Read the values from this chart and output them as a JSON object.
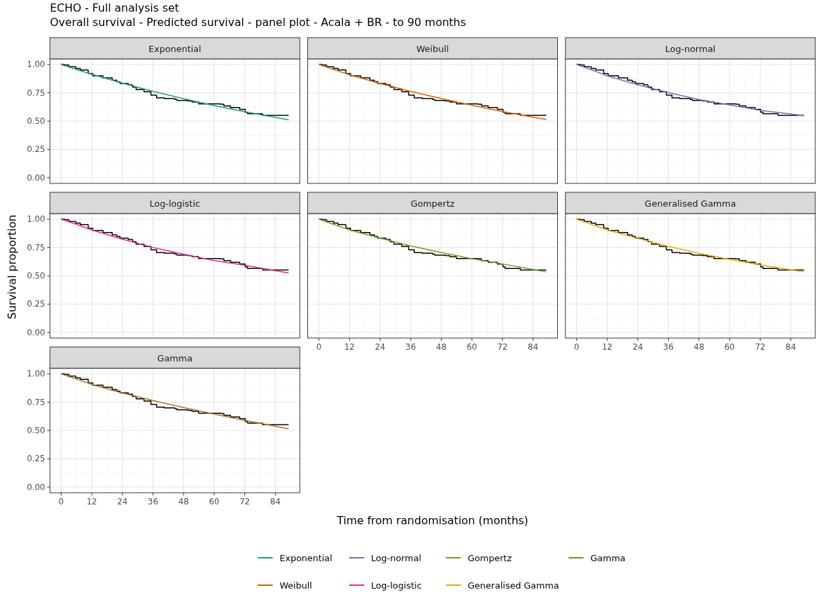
{
  "chart_data": [
    {
      "type": "line",
      "title": "Exponential",
      "annotations": [
        "ECHO - Full analysis set",
        "Overall survival - Predicted survival - panel plot - Acala + BR - to 90 months"
      ],
      "xlabel": "Time from randomisation (months)",
      "ylabel": "Survival proportion",
      "xlim": [
        -4.4,
        93.6
      ],
      "ylim": [
        -0.05,
        1.05
      ],
      "xticks": [
        0,
        12,
        24,
        36,
        48,
        60,
        72,
        84
      ],
      "yticks": [
        {
          "value": 0,
          "label": "0.00"
        },
        {
          "value": 0.25,
          "label": "0.25"
        },
        {
          "value": 0.5,
          "label": "0.50"
        },
        {
          "value": 0.75,
          "label": "0.75"
        },
        {
          "value": 1,
          "label": "1.00"
        }
      ],
      "grid": true,
      "legend": "bottom",
      "tick_labels": "y",
      "series": [
        {
          "type": "step",
          "color": "#000000",
          "x": [
            0,
            1.3,
            3,
            5.7,
            7.5,
            10.6,
            12.4,
            16.4,
            20,
            21.8,
            23.1,
            26.3,
            28,
            29.4,
            32.5,
            35.2,
            37.4,
            40.5,
            44.6,
            45.4,
            49.5,
            51.3,
            53.9,
            62.4,
            63.8,
            66.4,
            70,
            72.2,
            73.1,
            79,
            89.2
          ],
          "values": [
            1,
            0.996,
            0.98,
            0.966,
            0.952,
            0.92,
            0.9,
            0.883,
            0.861,
            0.847,
            0.833,
            0.821,
            0.8,
            0.78,
            0.76,
            0.73,
            0.706,
            0.7,
            0.692,
            0.683,
            0.679,
            0.669,
            0.653,
            0.649,
            0.635,
            0.619,
            0.605,
            0.579,
            0.565,
            0.552,
            0.552
          ]
        },
        {
          "name": "Exponential",
          "color": "#1b9e77",
          "x": [
            0,
            6,
            12,
            24,
            36,
            48,
            60,
            72,
            84,
            89.2
          ],
          "values": [
            1,
            0.956,
            0.914,
            0.835,
            0.763,
            0.698,
            0.638,
            0.583,
            0.533,
            0.512
          ]
        }
      ]
    },
    {
      "type": "line",
      "title": "Weibull",
      "xlim": [
        -4.4,
        93.6
      ],
      "ylim": [
        -0.05,
        1.05
      ],
      "xticks": [
        0,
        12,
        24,
        36,
        48,
        60,
        72,
        84
      ],
      "yticks": [
        0,
        0.25,
        0.5,
        0.75,
        1
      ],
      "grid": true,
      "legend": "bottom",
      "tick_labels": false,
      "series": [
        {
          "type": "step",
          "color": "#000000",
          "x": [
            0,
            1.3,
            3,
            5.7,
            7.5,
            10.6,
            12.4,
            16.4,
            20,
            21.8,
            23.1,
            26.3,
            28,
            29.4,
            32.5,
            35.2,
            37.4,
            40.5,
            44.6,
            45.4,
            49.5,
            51.3,
            53.9,
            62.4,
            63.8,
            66.4,
            70,
            72.2,
            73.1,
            79,
            89.2
          ],
          "values": [
            1,
            0.996,
            0.98,
            0.966,
            0.952,
            0.92,
            0.9,
            0.883,
            0.861,
            0.847,
            0.833,
            0.821,
            0.8,
            0.78,
            0.76,
            0.73,
            0.706,
            0.7,
            0.692,
            0.683,
            0.679,
            0.669,
            0.653,
            0.649,
            0.635,
            0.619,
            0.605,
            0.579,
            0.565,
            0.552,
            0.552
          ]
        },
        {
          "name": "Weibull",
          "color": "#d95f02",
          "x": [
            0,
            6,
            12,
            24,
            36,
            48,
            60,
            72,
            84,
            89.2
          ],
          "values": [
            1,
            0.954,
            0.91,
            0.833,
            0.763,
            0.7,
            0.641,
            0.585,
            0.535,
            0.515
          ]
        }
      ]
    },
    {
      "type": "line",
      "title": "Log-normal",
      "xlim": [
        -4.4,
        93.6
      ],
      "ylim": [
        -0.05,
        1.05
      ],
      "xticks": [
        0,
        12,
        24,
        36,
        48,
        60,
        72,
        84
      ],
      "yticks": [
        0,
        0.25,
        0.5,
        0.75,
        1
      ],
      "grid": true,
      "legend": "bottom",
      "tick_labels": false,
      "series": [
        {
          "type": "step",
          "color": "#000000",
          "x": [
            0,
            1.3,
            3,
            5.7,
            7.5,
            10.6,
            12.4,
            16.4,
            20,
            21.8,
            23.1,
            26.3,
            28,
            29.4,
            32.5,
            35.2,
            37.4,
            40.5,
            44.6,
            45.4,
            49.5,
            51.3,
            53.9,
            62.4,
            63.8,
            66.4,
            70,
            72.2,
            73.1,
            79,
            89.2
          ],
          "values": [
            1,
            0.996,
            0.98,
            0.966,
            0.952,
            0.92,
            0.9,
            0.883,
            0.861,
            0.847,
            0.833,
            0.821,
            0.8,
            0.78,
            0.76,
            0.73,
            0.706,
            0.7,
            0.692,
            0.683,
            0.679,
            0.669,
            0.653,
            0.649,
            0.635,
            0.619,
            0.605,
            0.579,
            0.565,
            0.552,
            0.552
          ]
        },
        {
          "name": "Log-normal",
          "color": "#7570b3",
          "x": [
            0,
            6,
            12,
            24,
            36,
            48,
            60,
            72,
            84,
            89.2
          ],
          "values": [
            1,
            0.952,
            0.9,
            0.82,
            0.752,
            0.69,
            0.643,
            0.595,
            0.563,
            0.548
          ]
        }
      ]
    },
    {
      "type": "line",
      "title": "Log-logistic",
      "xlim": [
        -4.4,
        93.6
      ],
      "ylim": [
        -0.05,
        1.05
      ],
      "xticks": [
        0,
        12,
        24,
        36,
        48,
        60,
        72,
        84
      ],
      "yticks": [
        {
          "value": 0,
          "label": "0.00"
        },
        {
          "value": 0.25,
          "label": "0.25"
        },
        {
          "value": 0.5,
          "label": "0.50"
        },
        {
          "value": 0.75,
          "label": "0.75"
        },
        {
          "value": 1,
          "label": "1.00"
        }
      ],
      "grid": true,
      "legend": "bottom",
      "tick_labels": "y",
      "series": [
        {
          "type": "step",
          "color": "#000000",
          "x": [
            0,
            1.3,
            3,
            5.7,
            7.5,
            10.6,
            12.4,
            16.4,
            20,
            21.8,
            23.1,
            26.3,
            28,
            29.4,
            32.5,
            35.2,
            37.4,
            40.5,
            44.6,
            45.4,
            49.5,
            51.3,
            53.9,
            62.4,
            63.8,
            66.4,
            70,
            72.2,
            73.1,
            79,
            89.2
          ],
          "values": [
            1,
            0.996,
            0.98,
            0.966,
            0.952,
            0.92,
            0.9,
            0.883,
            0.861,
            0.847,
            0.833,
            0.821,
            0.8,
            0.78,
            0.76,
            0.73,
            0.706,
            0.7,
            0.692,
            0.683,
            0.679,
            0.669,
            0.653,
            0.649,
            0.635,
            0.619,
            0.605,
            0.579,
            0.565,
            0.552,
            0.552
          ]
        },
        {
          "name": "Log-logistic",
          "color": "#e7298a",
          "x": [
            0,
            6,
            12,
            24,
            36,
            48,
            60,
            72,
            84,
            89.2
          ],
          "values": [
            1,
            0.955,
            0.905,
            0.823,
            0.75,
            0.69,
            0.635,
            0.594,
            0.546,
            0.526
          ]
        }
      ]
    },
    {
      "type": "line",
      "title": "Gompertz",
      "xlim": [
        -4.4,
        93.6
      ],
      "ylim": [
        -0.05,
        1.05
      ],
      "xticks": [
        0,
        12,
        24,
        36,
        48,
        60,
        72,
        84
      ],
      "yticks": [
        0,
        0.25,
        0.5,
        0.75,
        1
      ],
      "grid": true,
      "legend": "bottom",
      "tick_labels": "x",
      "series": [
        {
          "type": "step",
          "color": "#000000",
          "x": [
            0,
            1.3,
            3,
            5.7,
            7.5,
            10.6,
            12.4,
            16.4,
            20,
            21.8,
            23.1,
            26.3,
            28,
            29.4,
            32.5,
            35.2,
            37.4,
            40.5,
            44.6,
            45.4,
            49.5,
            51.3,
            53.9,
            62.4,
            63.8,
            66.4,
            70,
            72.2,
            73.1,
            79,
            89.2
          ],
          "values": [
            1,
            0.996,
            0.98,
            0.966,
            0.952,
            0.92,
            0.9,
            0.883,
            0.861,
            0.847,
            0.833,
            0.821,
            0.8,
            0.78,
            0.76,
            0.73,
            0.706,
            0.7,
            0.692,
            0.683,
            0.679,
            0.669,
            0.653,
            0.649,
            0.635,
            0.619,
            0.605,
            0.579,
            0.565,
            0.552,
            0.552
          ]
        },
        {
          "name": "Gompertz",
          "color": "#66a61e",
          "x": [
            0,
            6,
            12,
            24,
            36,
            48,
            60,
            72,
            84,
            89.2
          ],
          "values": [
            1,
            0.952,
            0.905,
            0.833,
            0.764,
            0.706,
            0.651,
            0.605,
            0.556,
            0.534
          ]
        }
      ]
    },
    {
      "type": "line",
      "title": "Generalised Gamma",
      "xlim": [
        -4.4,
        93.6
      ],
      "ylim": [
        -0.05,
        1.05
      ],
      "xticks": [
        0,
        12,
        24,
        36,
        48,
        60,
        72,
        84
      ],
      "yticks": [
        0,
        0.25,
        0.5,
        0.75,
        1
      ],
      "grid": true,
      "legend": "bottom",
      "tick_labels": "x",
      "series": [
        {
          "type": "step",
          "color": "#000000",
          "x": [
            0,
            1.3,
            3,
            5.7,
            7.5,
            10.6,
            12.4,
            16.4,
            20,
            21.8,
            23.1,
            26.3,
            28,
            29.4,
            32.5,
            35.2,
            37.4,
            40.5,
            44.6,
            45.4,
            49.5,
            51.3,
            53.9,
            62.4,
            63.8,
            66.4,
            70,
            72.2,
            73.1,
            79,
            89.2
          ],
          "values": [
            1,
            0.996,
            0.98,
            0.966,
            0.952,
            0.92,
            0.9,
            0.883,
            0.861,
            0.847,
            0.833,
            0.821,
            0.8,
            0.78,
            0.76,
            0.73,
            0.706,
            0.7,
            0.692,
            0.683,
            0.679,
            0.669,
            0.653,
            0.649,
            0.635,
            0.619,
            0.605,
            0.579,
            0.565,
            0.552,
            0.552
          ]
        },
        {
          "name": "Generalised Gamma",
          "color": "#e6ab02",
          "x": [
            0,
            6,
            12,
            24,
            36,
            48,
            60,
            72,
            84,
            89.2
          ],
          "values": [
            1,
            0.953,
            0.905,
            0.83,
            0.76,
            0.7,
            0.645,
            0.597,
            0.553,
            0.535
          ]
        }
      ]
    },
    {
      "type": "line",
      "title": "Gamma",
      "xlim": [
        -4.4,
        93.6
      ],
      "ylim": [
        -0.05,
        1.05
      ],
      "xticks": [
        0,
        12,
        24,
        36,
        48,
        60,
        72,
        84
      ],
      "yticks": [
        {
          "value": 0,
          "label": "0.00"
        },
        {
          "value": 0.25,
          "label": "0.25"
        },
        {
          "value": 0.5,
          "label": "0.50"
        },
        {
          "value": 0.75,
          "label": "0.75"
        },
        {
          "value": 1,
          "label": "1.00"
        }
      ],
      "grid": true,
      "legend": "bottom",
      "series": [
        {
          "type": "step",
          "color": "#000000",
          "x": [
            0,
            1.3,
            3,
            5.7,
            7.5,
            10.6,
            12.4,
            16.4,
            20,
            21.8,
            23.1,
            26.3,
            28,
            29.4,
            32.5,
            35.2,
            37.4,
            40.5,
            44.6,
            45.4,
            49.5,
            51.3,
            53.9,
            62.4,
            63.8,
            66.4,
            70,
            72.2,
            73.1,
            79,
            89.2
          ],
          "values": [
            1,
            0.996,
            0.98,
            0.966,
            0.952,
            0.92,
            0.9,
            0.883,
            0.861,
            0.847,
            0.833,
            0.821,
            0.8,
            0.78,
            0.76,
            0.73,
            0.706,
            0.7,
            0.692,
            0.683,
            0.679,
            0.669,
            0.653,
            0.649,
            0.635,
            0.619,
            0.605,
            0.579,
            0.565,
            0.552,
            0.552
          ]
        },
        {
          "name": "Gamma",
          "color": "#a6761d",
          "x": [
            0,
            6,
            12,
            24,
            36,
            48,
            60,
            72,
            84,
            89.2
          ],
          "values": [
            1,
            0.955,
            0.907,
            0.831,
            0.764,
            0.702,
            0.645,
            0.589,
            0.538,
            0.515
          ]
        }
      ]
    }
  ]
}
